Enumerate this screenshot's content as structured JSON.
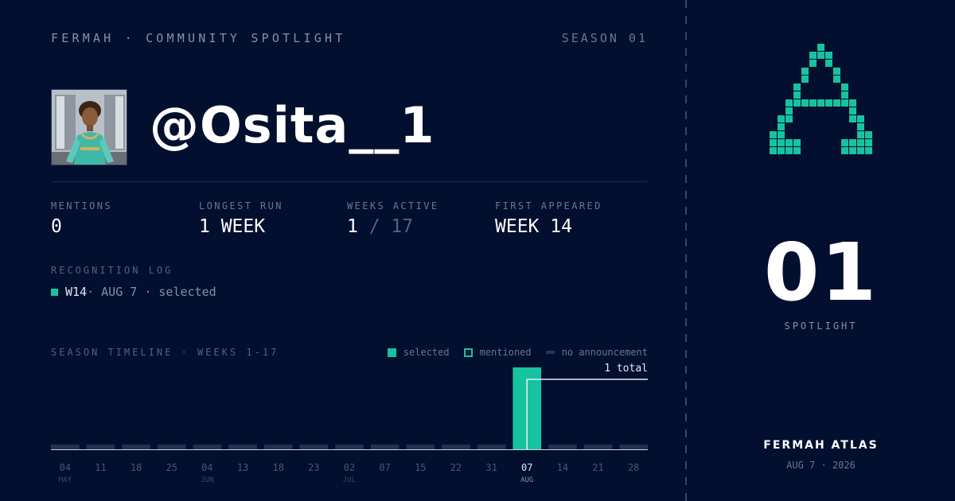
{
  "header": {
    "brand": "FERMAH · COMMUNITY SPOTLIGHT",
    "season": "SEASON 01"
  },
  "profile": {
    "handle": "@Osita__1"
  },
  "stats": [
    {
      "label": "MENTIONS",
      "value": "0"
    },
    {
      "label": "LONGEST RUN",
      "value": "1 WEEK"
    },
    {
      "label": "WEEKS ACTIVE",
      "value": "1",
      "total": "/ 17"
    },
    {
      "label": "FIRST APPEARED",
      "value": "WEEK 14"
    }
  ],
  "log": {
    "label": "RECOGNITION LOG",
    "entries": [
      {
        "week": "W14",
        "rest": " · AUG 7 · selected"
      }
    ]
  },
  "timeline": {
    "label": "SEASON TIMELINE · WEEKS 1-17",
    "legend": [
      "selected",
      "mentioned",
      "no announcement"
    ],
    "total_label": "1 total",
    "colors": {
      "selected": "#16c3a0",
      "none": "#24304d",
      "axis": "#cfd6e4"
    }
  },
  "chart_data": {
    "type": "bar",
    "categories": [
      "04",
      "11",
      "18",
      "25",
      "04",
      "13",
      "18",
      "23",
      "02",
      "07",
      "15",
      "22",
      "31",
      "07",
      "14",
      "21",
      "28"
    ],
    "months": [
      {
        "index": 0,
        "label": "MAY"
      },
      {
        "index": 4,
        "label": "JUN"
      },
      {
        "index": 8,
        "label": "JUL"
      },
      {
        "index": 13,
        "label": "AUG"
      }
    ],
    "highlight_index": 13,
    "status": [
      "none",
      "none",
      "none",
      "none",
      "none",
      "none",
      "none",
      "none",
      "none",
      "none",
      "none",
      "none",
      "none",
      "selected",
      "none",
      "none",
      "none"
    ],
    "cumulative": [
      0,
      0,
      0,
      0,
      0,
      0,
      0,
      0,
      0,
      0,
      0,
      0,
      0,
      1,
      1,
      1,
      1
    ]
  },
  "sidebar": {
    "rank": "01",
    "rank_label": "SPOTLIGHT",
    "footer_title": "FERMAH ATLAS",
    "footer_date": "AUG 7 · 2026"
  }
}
